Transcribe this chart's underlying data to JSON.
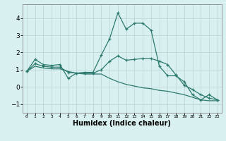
{
  "xlabel": "Humidex (Indice chaleur)",
  "x": [
    0,
    1,
    2,
    3,
    4,
    5,
    6,
    7,
    8,
    9,
    10,
    11,
    12,
    13,
    14,
    15,
    16,
    17,
    18,
    19,
    20,
    21,
    22,
    23
  ],
  "line1": [
    0.9,
    1.6,
    1.3,
    1.25,
    1.3,
    0.5,
    0.8,
    0.85,
    0.85,
    1.85,
    2.8,
    4.3,
    3.35,
    3.7,
    3.7,
    3.3,
    1.2,
    0.65,
    0.65,
    0.3,
    -0.45,
    -0.75,
    -0.45,
    -0.75
  ],
  "line2": [
    0.9,
    1.35,
    1.2,
    1.15,
    1.15,
    0.85,
    0.8,
    0.8,
    0.8,
    1.0,
    1.5,
    1.8,
    1.55,
    1.6,
    1.65,
    1.65,
    1.5,
    1.3,
    0.7,
    0.1,
    -0.15,
    -0.45,
    -0.65,
    -0.75
  ],
  "line3": [
    0.9,
    1.2,
    1.1,
    1.05,
    1.05,
    0.9,
    0.8,
    0.75,
    0.75,
    0.75,
    0.5,
    0.3,
    0.15,
    0.05,
    -0.05,
    -0.1,
    -0.2,
    -0.25,
    -0.35,
    -0.45,
    -0.6,
    -0.75,
    -0.8,
    -0.8
  ],
  "line_color": "#2d7a6e",
  "bg_color": "#d9f0f0",
  "grid_color": "#c0d8d8",
  "ylim": [
    -1.5,
    4.8
  ],
  "yticks": [
    -1,
    0,
    1,
    2,
    3,
    4
  ],
  "xlim": [
    -0.5,
    23.5
  ]
}
